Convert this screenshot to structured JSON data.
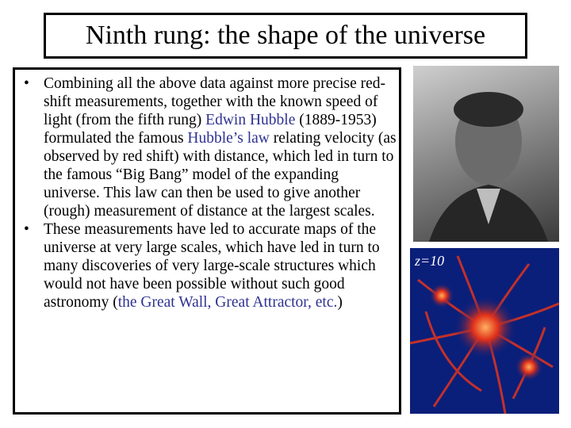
{
  "slide": {
    "title": "Ninth rung: the shape of the universe",
    "bullets": [
      {
        "segments": [
          {
            "text": "Combining all the above data against more precise red-shift measurements, together with the known speed of light (from the fifth rung) ",
            "link": false
          },
          {
            "text": "Edwin Hubble",
            "link": true
          },
          {
            "text": " (1889-1953) formulated the famous ",
            "link": false
          },
          {
            "text": "Hubble’s law",
            "link": true
          },
          {
            "text": " relating velocity (as observed by red shift) with distance, which led in turn to the famous “Big Bang” model of the expanding universe.  This law can then be used to give another (rough) measurement of distance at the largest scales.",
            "link": false
          }
        ]
      },
      {
        "segments": [
          {
            "text": "These measurements have led to accurate maps of the universe at very large scales, which have led in turn to many discoveries of very large-scale structures which would not have been possible without such good astronomy (",
            "link": false
          },
          {
            "text": "the Great Wall, Great Attractor, etc.",
            "link": true
          },
          {
            "text": ")",
            "link": false
          }
        ]
      }
    ],
    "simulation_label": "z=10"
  }
}
